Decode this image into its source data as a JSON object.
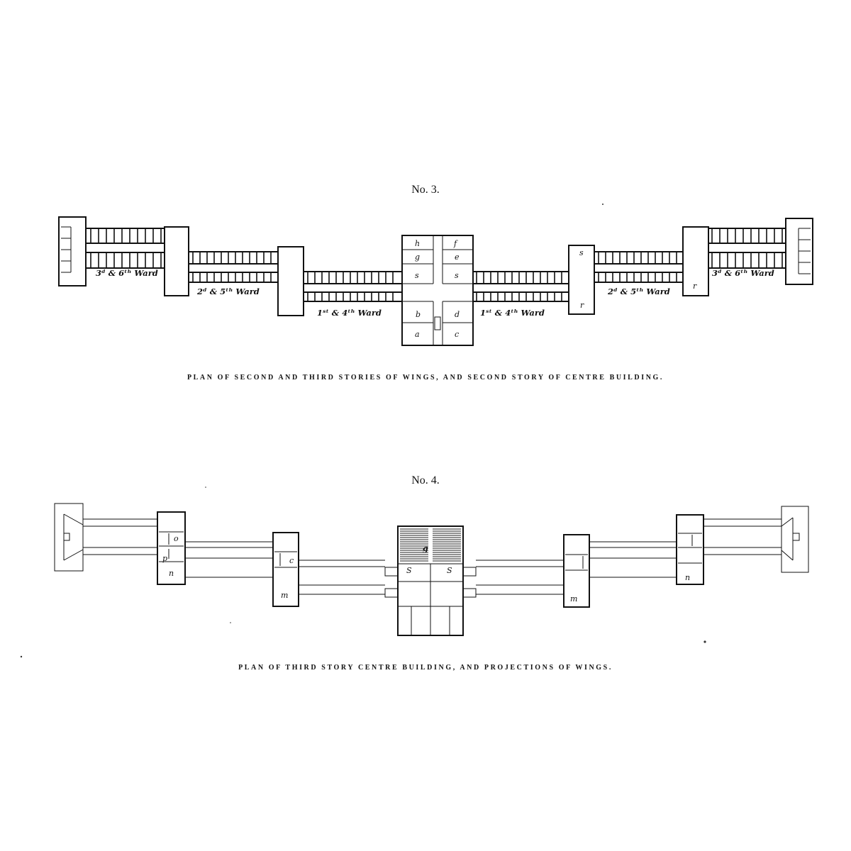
{
  "plan3": {
    "number": "No. 3.",
    "caption": "PLAN OF SECOND AND THIRD STORIES OF WINGS, AND SECOND STORY OF CENTRE BUILDING.",
    "ward_labels": {
      "left_outer": "3ᵈ & 6ᵗʰ Ward",
      "left_middle": "2ᵈ & 5ᵗʰ Ward",
      "left_inner": "1ˢᵗ & 4ᵗʰ Ward",
      "right_inner": "1ˢᵗ & 4ᵗʰ Ward",
      "right_middle": "2ᵈ & 5ᵗʰ Ward",
      "right_outer": "3ᵈ & 6ᵗʰ Ward"
    },
    "room_labels": {
      "h": "h",
      "f": "f",
      "g": "g",
      "e_top": "e",
      "s_left": "s",
      "s_right": "s",
      "b": "b",
      "d": "d",
      "a": "a",
      "c": "c",
      "s_right_pavilion": "s",
      "r_right_inner": "r",
      "r_right_outer": "r"
    }
  },
  "plan4": {
    "number": "No. 4.",
    "caption": "PLAN OF THIRD STORY CENTRE BUILDING, AND PROJECTIONS OF WINGS.",
    "room_labels": {
      "g": "g",
      "s_left": "S",
      "s_right": "S",
      "n": "n",
      "o": "o",
      "p": "p",
      "c": "c",
      "m_left": "m",
      "m_right": "m",
      "n_right": "n"
    }
  }
}
